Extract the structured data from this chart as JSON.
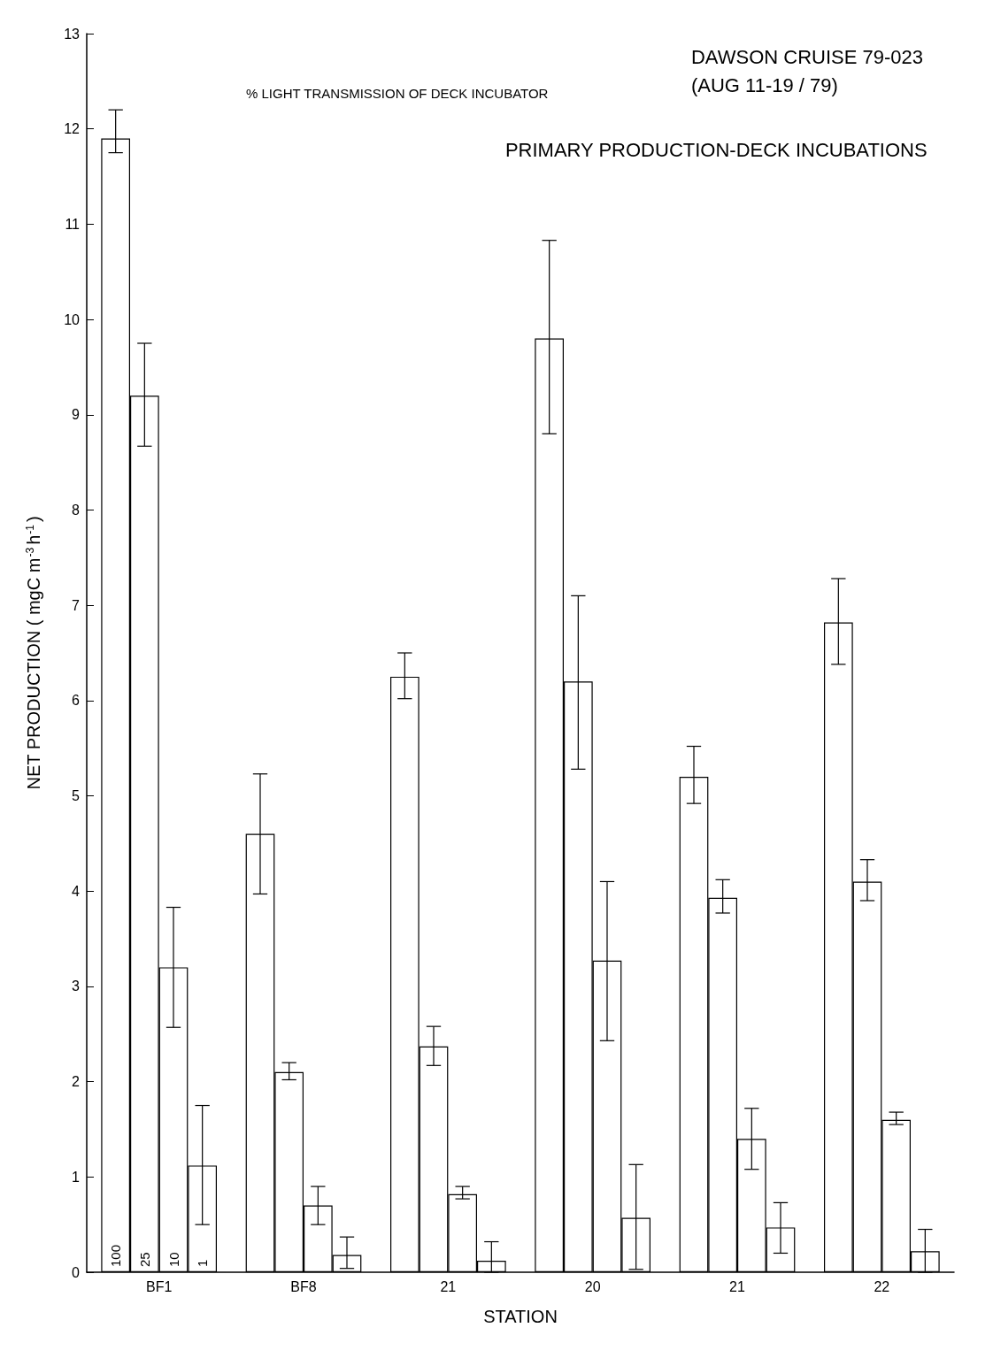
{
  "chart_data": {
    "type": "bar",
    "title": "DAWSON CRUISE 79-023",
    "subtitle": "(AUG 11-19 / 79)",
    "annotations": [
      "PRIMARY PRODUCTION-DECK INCUBATIONS",
      "% LIGHT TRANSMISSION OF DECK INCUBATOR"
    ],
    "xlabel": "STATION",
    "ylabel": "NET PRODUCTION ( mgC m$^{-3}$h$^{-1}$)",
    "grid": false,
    "ylim": [
      0,
      13
    ],
    "yticks": [
      0,
      1,
      2,
      3,
      4,
      5,
      6,
      7,
      8,
      9,
      10,
      11,
      12,
      13
    ],
    "categories": [
      "BF1",
      "BF8",
      "21",
      "20",
      "21",
      "22"
    ],
    "series": [
      {
        "name": "100",
        "color": "#ffffff",
        "values": [
          11.9,
          4.6,
          6.25,
          9.8,
          5.2,
          6.82
        ],
        "errors": [
          [
            11.75,
            12.2
          ],
          [
            3.97,
            5.23
          ],
          [
            6.02,
            6.5
          ],
          [
            8.8,
            10.83
          ],
          [
            4.92,
            5.52
          ],
          [
            6.38,
            7.28
          ]
        ]
      },
      {
        "name": "25",
        "color": "#ffffff",
        "values": [
          9.2,
          2.1,
          2.37,
          6.2,
          3.93,
          4.1
        ],
        "errors": [
          [
            8.67,
            9.75
          ],
          [
            2.02,
            2.2
          ],
          [
            2.17,
            2.58
          ],
          [
            5.28,
            7.1
          ],
          [
            3.77,
            4.12
          ],
          [
            3.9,
            4.33
          ]
        ]
      },
      {
        "name": "10",
        "color": "#ffffff",
        "values": [
          3.2,
          0.7,
          0.82,
          3.27,
          1.4,
          1.6
        ],
        "errors": [
          [
            2.57,
            3.83
          ],
          [
            0.5,
            0.9
          ],
          [
            0.77,
            0.9
          ],
          [
            2.43,
            4.1
          ],
          [
            1.08,
            1.72
          ],
          [
            1.55,
            1.68
          ]
        ]
      },
      {
        "name": "1",
        "color": "#ffffff",
        "values": [
          1.12,
          0.18,
          0.12,
          0.57,
          0.47,
          0.22
        ],
        "errors": [
          [
            0.5,
            1.75
          ],
          [
            0.04,
            0.37
          ],
          [
            0,
            0.32
          ],
          [
            0.03,
            1.13
          ],
          [
            0.2,
            0.73
          ],
          [
            0,
            0.45
          ]
        ]
      }
    ]
  }
}
